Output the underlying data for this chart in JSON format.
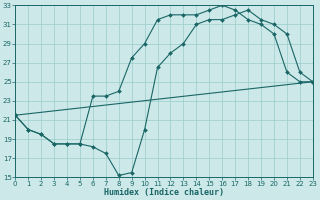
{
  "xlabel": "Humidex (Indice chaleur)",
  "xlim": [
    0,
    23
  ],
  "ylim": [
    15,
    33
  ],
  "xticks": [
    0,
    1,
    2,
    3,
    4,
    5,
    6,
    7,
    8,
    9,
    10,
    11,
    12,
    13,
    14,
    15,
    16,
    17,
    18,
    19,
    20,
    21,
    22,
    23
  ],
  "yticks": [
    15,
    17,
    19,
    21,
    23,
    25,
    27,
    29,
    31,
    33
  ],
  "background_color": "#cce8e8",
  "grid_color": "#99cccc",
  "line_color": "#1a6666",
  "line1_x": [
    0,
    1,
    2,
    3,
    4,
    5,
    6,
    7,
    8,
    9,
    10,
    11,
    12,
    13,
    14,
    15,
    16,
    17,
    18,
    19,
    20,
    21,
    22,
    23
  ],
  "line1_y": [
    21.5,
    20.0,
    19.5,
    18.5,
    18.5,
    18.5,
    18.2,
    17.5,
    15.2,
    15.5,
    20.0,
    26.5,
    28.0,
    29.0,
    31.0,
    31.5,
    31.5,
    32.0,
    32.5,
    31.5,
    31.0,
    30.0,
    26.0,
    25.0
  ],
  "line2_x": [
    0,
    23
  ],
  "line2_y": [
    21.5,
    25.0
  ],
  "line3_x": [
    0,
    1,
    2,
    3,
    4,
    5,
    6,
    7,
    8,
    9,
    10,
    11,
    12,
    13,
    14,
    15,
    16,
    17,
    18,
    19,
    20,
    21,
    22,
    23
  ],
  "line3_y": [
    21.5,
    20.0,
    19.5,
    18.5,
    18.5,
    18.5,
    23.5,
    23.5,
    24.0,
    27.5,
    29.0,
    31.5,
    32.0,
    32.0,
    32.0,
    32.5,
    33.0,
    32.5,
    31.5,
    31.0,
    30.0,
    26.0,
    25.0,
    25.0
  ]
}
